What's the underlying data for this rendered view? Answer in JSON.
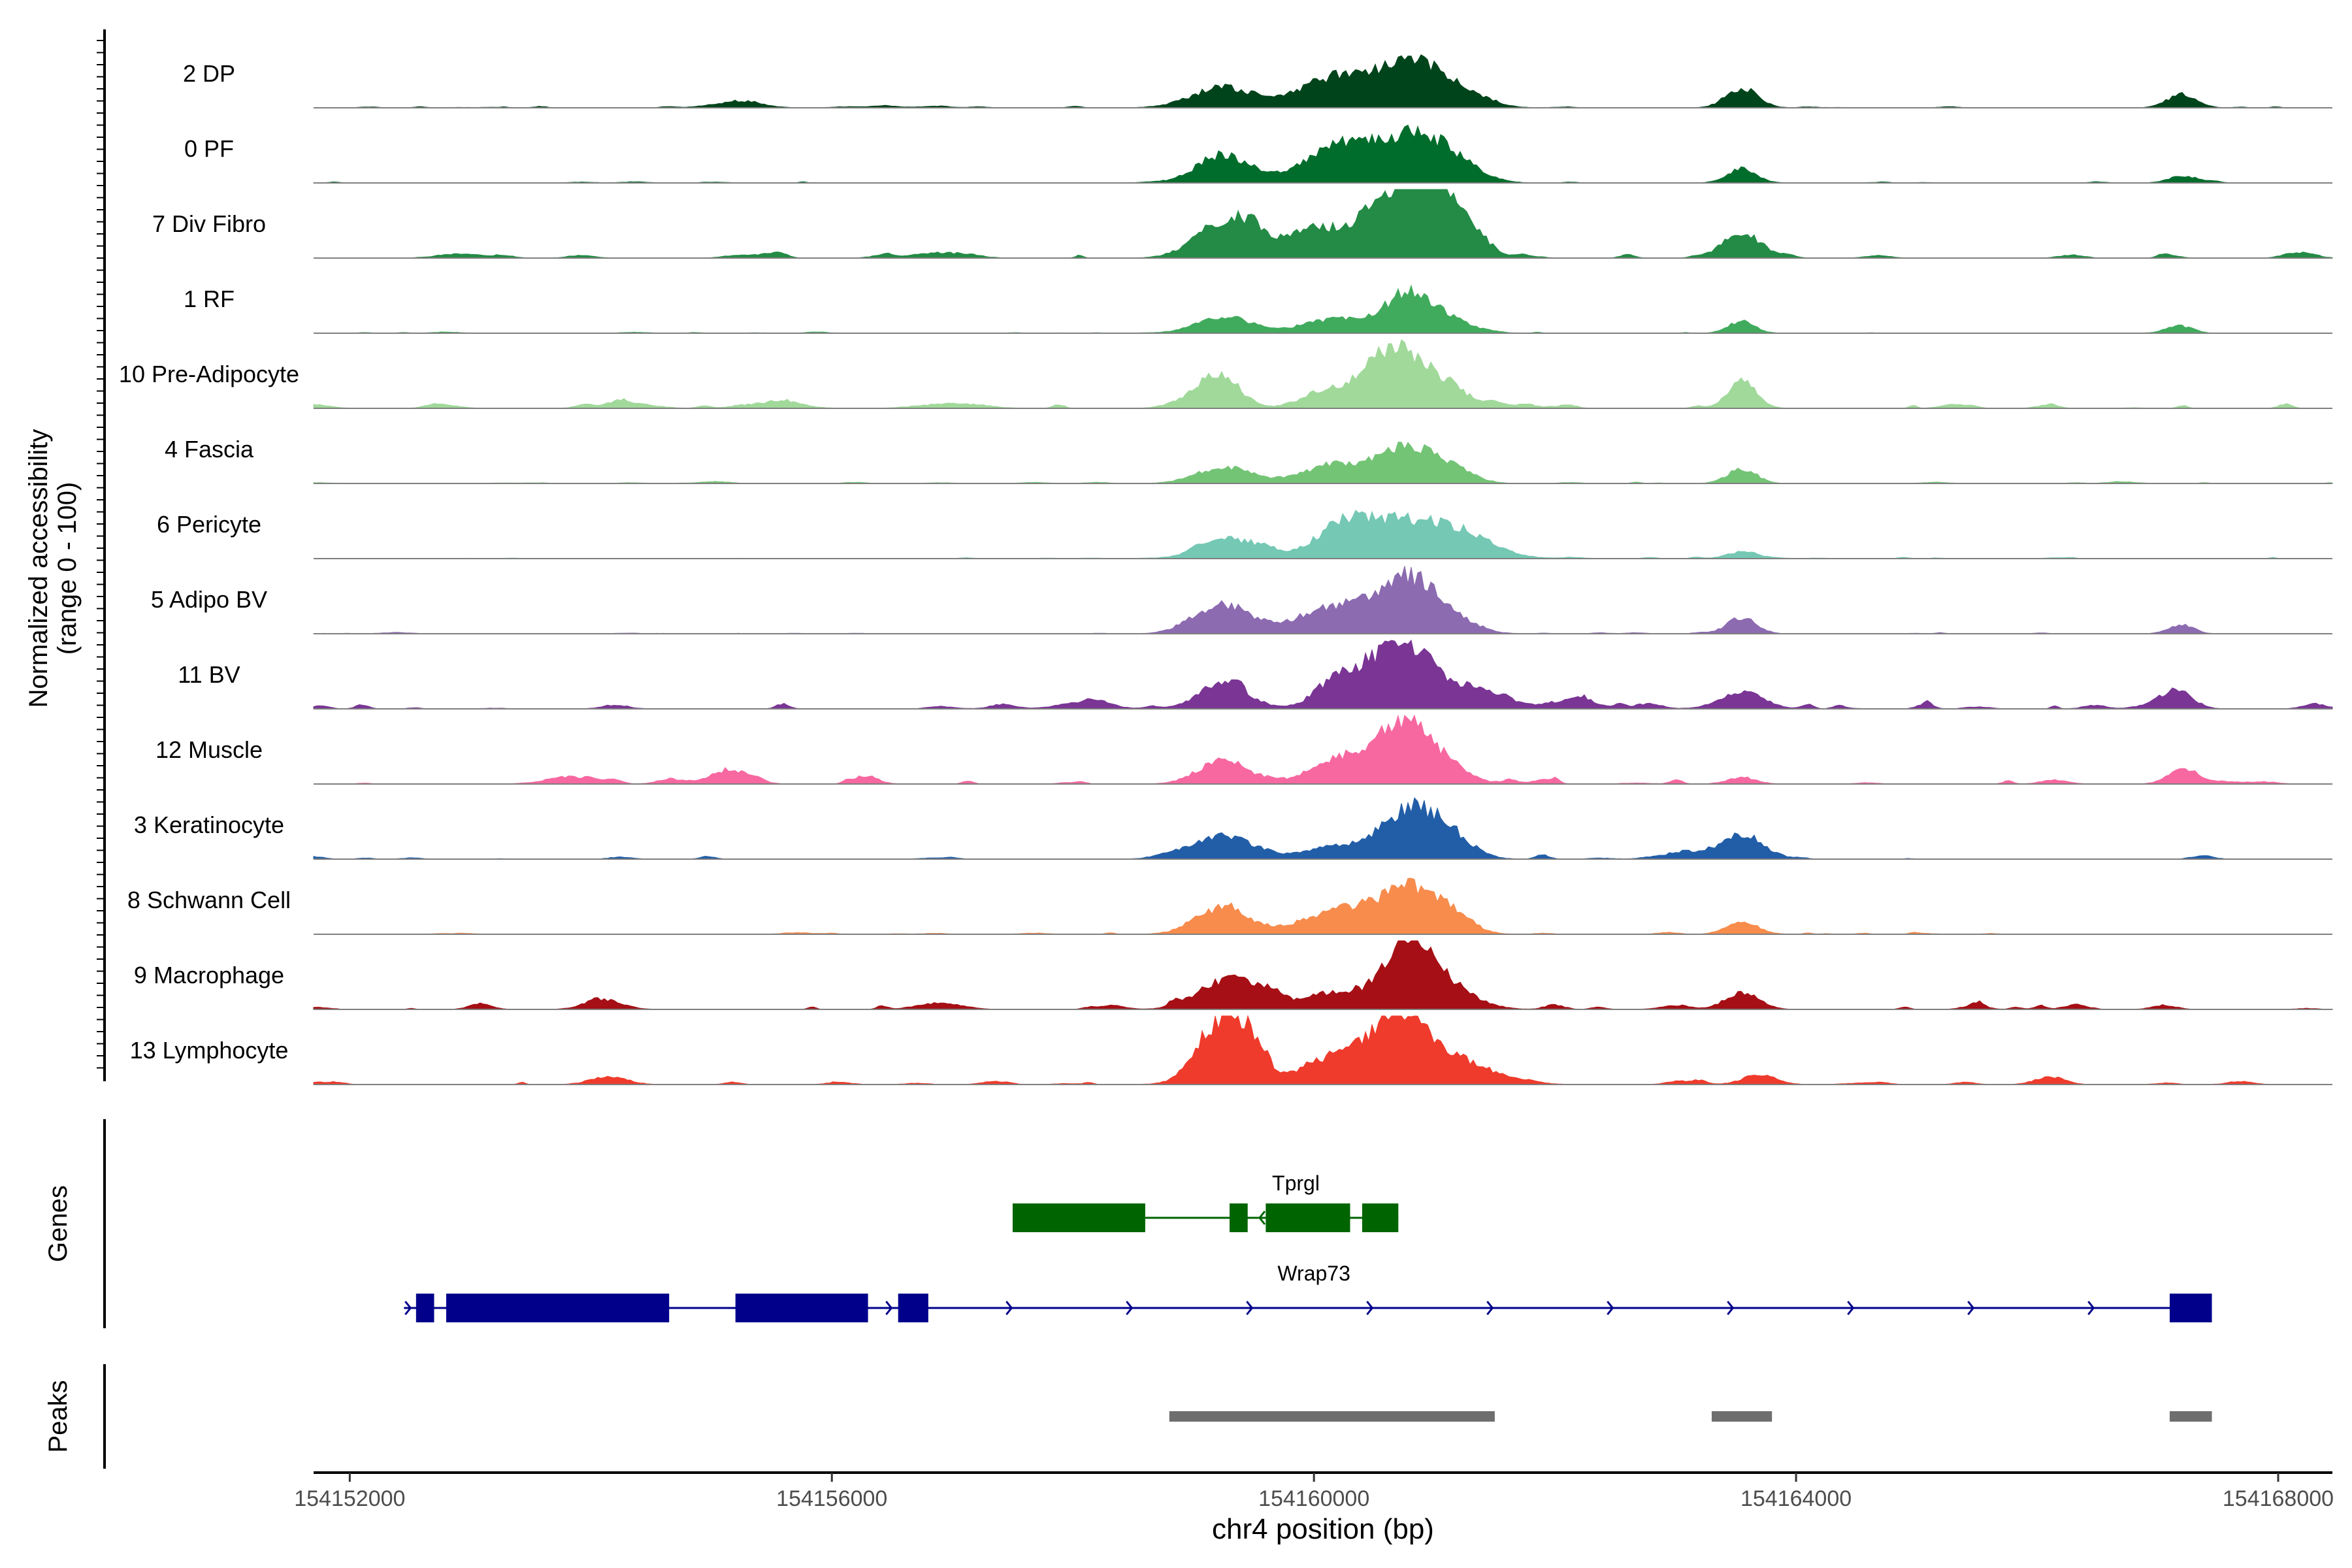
{
  "chart_data": {
    "type": "area",
    "title": "",
    "y_axis_label": [
      "Normalized accessibility",
      "(range 0 - 100)"
    ],
    "x_axis_label": "chr4 position (bp)",
    "xlim": [
      154151700,
      154168450
    ],
    "x_ticks": [
      154152000,
      154156000,
      154160000,
      154164000,
      154168000
    ],
    "x_tick_labels": [
      "154152000",
      "154156000",
      "154160000",
      "154164000",
      "154168000"
    ],
    "track_labels": {
      "genes": "Genes",
      "peaks": "Peaks"
    },
    "series": [
      {
        "name": "2 DP",
        "color": "#00441b",
        "noise": 0.025,
        "peaks": [
          [
            154159250,
            260,
            0.3
          ],
          [
            154160200,
            300,
            0.48
          ],
          [
            154160800,
            240,
            0.65
          ],
          [
            154161200,
            220,
            0.22
          ],
          [
            154163550,
            130,
            0.3
          ],
          [
            154155200,
            200,
            0.08
          ],
          [
            154167200,
            120,
            0.2
          ]
        ]
      },
      {
        "name": "0 PF",
        "color": "#006d2c",
        "noise": 0.02,
        "peaks": [
          [
            154159250,
            220,
            0.42
          ],
          [
            154160200,
            280,
            0.55
          ],
          [
            154160800,
            260,
            0.65
          ],
          [
            154161150,
            220,
            0.25
          ],
          [
            154163550,
            120,
            0.22
          ],
          [
            154167200,
            110,
            0.1
          ]
        ]
      },
      {
        "name": "7 Div Fibro",
        "color": "#238b45",
        "noise": 0.06,
        "peaks": [
          [
            154159250,
            230,
            0.55
          ],
          [
            154159500,
            120,
            0.2
          ],
          [
            154160100,
            300,
            0.45
          ],
          [
            154160700,
            220,
            0.85
          ],
          [
            154161050,
            230,
            1.0
          ],
          [
            154163550,
            160,
            0.38
          ],
          [
            154152900,
            180,
            0.06
          ],
          [
            154156900,
            220,
            0.08
          ]
        ]
      },
      {
        "name": "1 RF",
        "color": "#41ab5d",
        "noise": 0.015,
        "peaks": [
          [
            154159250,
            220,
            0.25
          ],
          [
            154160200,
            280,
            0.22
          ],
          [
            154160800,
            200,
            0.6
          ],
          [
            154161150,
            160,
            0.15
          ],
          [
            154163550,
            110,
            0.18
          ],
          [
            154167200,
            100,
            0.1
          ]
        ]
      },
      {
        "name": "10 Pre-Adipocyte",
        "color": "#a1d99b",
        "noise": 0.07,
        "peaks": [
          [
            154159050,
            180,
            0.2
          ],
          [
            154159250,
            150,
            0.4
          ],
          [
            154160150,
            220,
            0.3
          ],
          [
            154160500,
            140,
            0.5
          ],
          [
            154160800,
            180,
            0.75
          ],
          [
            154161150,
            140,
            0.28
          ],
          [
            154163550,
            120,
            0.4
          ],
          [
            154154300,
            200,
            0.08
          ],
          [
            154155500,
            220,
            0.08
          ],
          [
            154157000,
            240,
            0.07
          ]
        ]
      },
      {
        "name": "4 Fascia",
        "color": "#74c476",
        "noise": 0.02,
        "peaks": [
          [
            154159250,
            220,
            0.25
          ],
          [
            154160200,
            280,
            0.3
          ],
          [
            154160800,
            220,
            0.55
          ],
          [
            154161200,
            160,
            0.15
          ],
          [
            154163550,
            120,
            0.22
          ]
        ]
      },
      {
        "name": "6 Pericyte",
        "color": "#74c8b4",
        "noise": 0.02,
        "peaks": [
          [
            154159200,
            180,
            0.3
          ],
          [
            154159550,
            140,
            0.18
          ],
          [
            154160250,
            240,
            0.45
          ],
          [
            154160800,
            350,
            0.55
          ],
          [
            154161300,
            250,
            0.2
          ],
          [
            154163550,
            120,
            0.1
          ]
        ]
      },
      {
        "name": "5 Adipo BV",
        "color": "#8c6bb1",
        "noise": 0.02,
        "peaks": [
          [
            154159250,
            220,
            0.45
          ],
          [
            154160200,
            320,
            0.42
          ],
          [
            154160800,
            230,
            0.8
          ],
          [
            154161200,
            180,
            0.15
          ],
          [
            154163550,
            120,
            0.25
          ],
          [
            154167200,
            100,
            0.12
          ]
        ]
      },
      {
        "name": "11 BV",
        "color": "#7a3595",
        "noise": 0.08,
        "peaks": [
          [
            154159250,
            200,
            0.4
          ],
          [
            154160250,
            200,
            0.55
          ],
          [
            154160700,
            200,
            0.85
          ],
          [
            154161000,
            230,
            0.4
          ],
          [
            154161450,
            180,
            0.2
          ],
          [
            154163550,
            180,
            0.25
          ],
          [
            154162100,
            200,
            0.12
          ],
          [
            154167150,
            130,
            0.3
          ],
          [
            154158100,
            200,
            0.1
          ]
        ]
      },
      {
        "name": "12 Muscle",
        "color": "#f768a1",
        "noise": 0.07,
        "peaks": [
          [
            154159250,
            200,
            0.38
          ],
          [
            154160200,
            220,
            0.4
          ],
          [
            154160700,
            200,
            0.85
          ],
          [
            154161000,
            200,
            0.35
          ],
          [
            154155150,
            160,
            0.22
          ],
          [
            154163550,
            120,
            0.1
          ],
          [
            154167200,
            120,
            0.2
          ],
          [
            154153800,
            200,
            0.08
          ]
        ]
      },
      {
        "name": "3 Keratinocyte",
        "color": "#225ea8",
        "noise": 0.04,
        "peaks": [
          [
            154159250,
            260,
            0.35
          ],
          [
            154160200,
            260,
            0.18
          ],
          [
            154160800,
            230,
            0.75
          ],
          [
            154161150,
            180,
            0.25
          ],
          [
            154163550,
            160,
            0.35
          ],
          [
            154163100,
            160,
            0.12
          ]
        ]
      },
      {
        "name": "8 Schwann Cell",
        "color": "#f78c4d",
        "noise": 0.03,
        "peaks": [
          [
            154159250,
            220,
            0.4
          ],
          [
            154160250,
            300,
            0.4
          ],
          [
            154160800,
            220,
            0.6
          ],
          [
            154161150,
            170,
            0.25
          ],
          [
            154163550,
            130,
            0.18
          ]
        ]
      },
      {
        "name": "9 Macrophage",
        "color": "#a50f15",
        "noise": 0.08,
        "peaks": [
          [
            154159250,
            220,
            0.45
          ],
          [
            154159550,
            130,
            0.2
          ],
          [
            154160200,
            260,
            0.28
          ],
          [
            154160800,
            200,
            1.0
          ],
          [
            154161150,
            220,
            0.25
          ],
          [
            154163550,
            140,
            0.25
          ],
          [
            154154100,
            150,
            0.15
          ],
          [
            154156900,
            180,
            0.1
          ]
        ]
      },
      {
        "name": "13 Lymphocyte",
        "color": "#ef3b2c",
        "noise": 0.06,
        "peaks": [
          [
            154159250,
            200,
            1.0
          ],
          [
            154159500,
            110,
            0.35
          ],
          [
            154160200,
            280,
            0.45
          ],
          [
            154160700,
            200,
            1.0
          ],
          [
            154161100,
            200,
            0.4
          ],
          [
            154161500,
            220,
            0.15
          ],
          [
            154154150,
            150,
            0.12
          ],
          [
            154163700,
            140,
            0.12
          ],
          [
            154166100,
            120,
            0.12
          ]
        ]
      }
    ],
    "genes": [
      {
        "name": "Tprgl",
        "color": "#006400",
        "strand": "-",
        "start": 154157500,
        "end": 154160700,
        "exons": [
          [
            154157500,
            154158600
          ],
          [
            154159300,
            154159450
          ],
          [
            154159600,
            154160300
          ],
          [
            154160400,
            154160700
          ]
        ]
      },
      {
        "name": "Wrap73",
        "color": "#00008b",
        "strand": "+",
        "start": 154152450,
        "end": 154167450,
        "exons": [
          [
            154152550,
            154152700
          ],
          [
            154152800,
            154154650
          ],
          [
            154155200,
            154156300
          ],
          [
            154156550,
            154156800
          ],
          [
            154167100,
            154167450
          ]
        ]
      }
    ],
    "peaks": [
      [
        154158800,
        154161500
      ],
      [
        154163300,
        154163800
      ],
      [
        154167100,
        154167450
      ]
    ]
  }
}
